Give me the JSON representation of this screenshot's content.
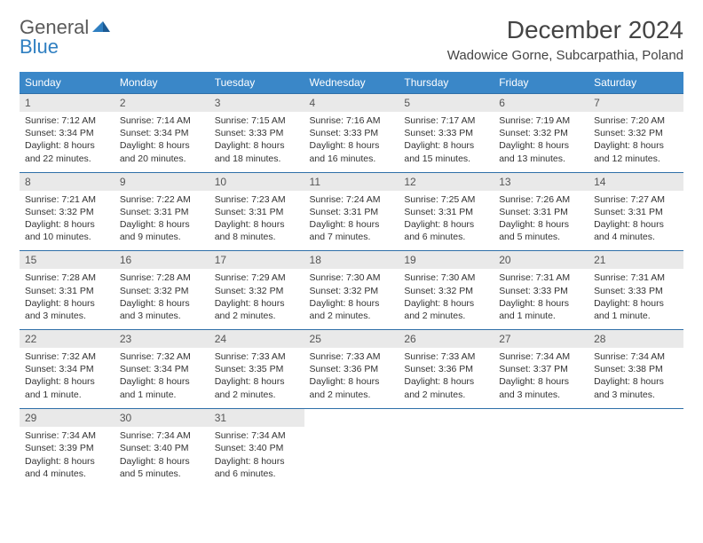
{
  "logo": {
    "text1": "General",
    "text2": "Blue"
  },
  "title": "December 2024",
  "subtitle": "Wadowice Gorne, Subcarpathia, Poland",
  "colors": {
    "header_bg": "#3a87c8",
    "header_text": "#ffffff",
    "daynum_bg": "#e9e9e9",
    "border": "#2f6fa8",
    "logo_gray": "#5a5a5a",
    "logo_blue": "#2f7fc1"
  },
  "day_labels": [
    "Sunday",
    "Monday",
    "Tuesday",
    "Wednesday",
    "Thursday",
    "Friday",
    "Saturday"
  ],
  "weeks": [
    [
      {
        "n": "1",
        "sunrise": "7:12 AM",
        "sunset": "3:34 PM",
        "daylight": "8 hours and 22 minutes."
      },
      {
        "n": "2",
        "sunrise": "7:14 AM",
        "sunset": "3:34 PM",
        "daylight": "8 hours and 20 minutes."
      },
      {
        "n": "3",
        "sunrise": "7:15 AM",
        "sunset": "3:33 PM",
        "daylight": "8 hours and 18 minutes."
      },
      {
        "n": "4",
        "sunrise": "7:16 AM",
        "sunset": "3:33 PM",
        "daylight": "8 hours and 16 minutes."
      },
      {
        "n": "5",
        "sunrise": "7:17 AM",
        "sunset": "3:33 PM",
        "daylight": "8 hours and 15 minutes."
      },
      {
        "n": "6",
        "sunrise": "7:19 AM",
        "sunset": "3:32 PM",
        "daylight": "8 hours and 13 minutes."
      },
      {
        "n": "7",
        "sunrise": "7:20 AM",
        "sunset": "3:32 PM",
        "daylight": "8 hours and 12 minutes."
      }
    ],
    [
      {
        "n": "8",
        "sunrise": "7:21 AM",
        "sunset": "3:32 PM",
        "daylight": "8 hours and 10 minutes."
      },
      {
        "n": "9",
        "sunrise": "7:22 AM",
        "sunset": "3:31 PM",
        "daylight": "8 hours and 9 minutes."
      },
      {
        "n": "10",
        "sunrise": "7:23 AM",
        "sunset": "3:31 PM",
        "daylight": "8 hours and 8 minutes."
      },
      {
        "n": "11",
        "sunrise": "7:24 AM",
        "sunset": "3:31 PM",
        "daylight": "8 hours and 7 minutes."
      },
      {
        "n": "12",
        "sunrise": "7:25 AM",
        "sunset": "3:31 PM",
        "daylight": "8 hours and 6 minutes."
      },
      {
        "n": "13",
        "sunrise": "7:26 AM",
        "sunset": "3:31 PM",
        "daylight": "8 hours and 5 minutes."
      },
      {
        "n": "14",
        "sunrise": "7:27 AM",
        "sunset": "3:31 PM",
        "daylight": "8 hours and 4 minutes."
      }
    ],
    [
      {
        "n": "15",
        "sunrise": "7:28 AM",
        "sunset": "3:31 PM",
        "daylight": "8 hours and 3 minutes."
      },
      {
        "n": "16",
        "sunrise": "7:28 AM",
        "sunset": "3:32 PM",
        "daylight": "8 hours and 3 minutes."
      },
      {
        "n": "17",
        "sunrise": "7:29 AM",
        "sunset": "3:32 PM",
        "daylight": "8 hours and 2 minutes."
      },
      {
        "n": "18",
        "sunrise": "7:30 AM",
        "sunset": "3:32 PM",
        "daylight": "8 hours and 2 minutes."
      },
      {
        "n": "19",
        "sunrise": "7:30 AM",
        "sunset": "3:32 PM",
        "daylight": "8 hours and 2 minutes."
      },
      {
        "n": "20",
        "sunrise": "7:31 AM",
        "sunset": "3:33 PM",
        "daylight": "8 hours and 1 minute."
      },
      {
        "n": "21",
        "sunrise": "7:31 AM",
        "sunset": "3:33 PM",
        "daylight": "8 hours and 1 minute."
      }
    ],
    [
      {
        "n": "22",
        "sunrise": "7:32 AM",
        "sunset": "3:34 PM",
        "daylight": "8 hours and 1 minute."
      },
      {
        "n": "23",
        "sunrise": "7:32 AM",
        "sunset": "3:34 PM",
        "daylight": "8 hours and 1 minute."
      },
      {
        "n": "24",
        "sunrise": "7:33 AM",
        "sunset": "3:35 PM",
        "daylight": "8 hours and 2 minutes."
      },
      {
        "n": "25",
        "sunrise": "7:33 AM",
        "sunset": "3:36 PM",
        "daylight": "8 hours and 2 minutes."
      },
      {
        "n": "26",
        "sunrise": "7:33 AM",
        "sunset": "3:36 PM",
        "daylight": "8 hours and 2 minutes."
      },
      {
        "n": "27",
        "sunrise": "7:34 AM",
        "sunset": "3:37 PM",
        "daylight": "8 hours and 3 minutes."
      },
      {
        "n": "28",
        "sunrise": "7:34 AM",
        "sunset": "3:38 PM",
        "daylight": "8 hours and 3 minutes."
      }
    ],
    [
      {
        "n": "29",
        "sunrise": "7:34 AM",
        "sunset": "3:39 PM",
        "daylight": "8 hours and 4 minutes."
      },
      {
        "n": "30",
        "sunrise": "7:34 AM",
        "sunset": "3:40 PM",
        "daylight": "8 hours and 5 minutes."
      },
      {
        "n": "31",
        "sunrise": "7:34 AM",
        "sunset": "3:40 PM",
        "daylight": "8 hours and 6 minutes."
      },
      null,
      null,
      null,
      null
    ]
  ],
  "labels": {
    "sunrise_prefix": "Sunrise: ",
    "sunset_prefix": "Sunset: ",
    "daylight_prefix": "Daylight: "
  }
}
